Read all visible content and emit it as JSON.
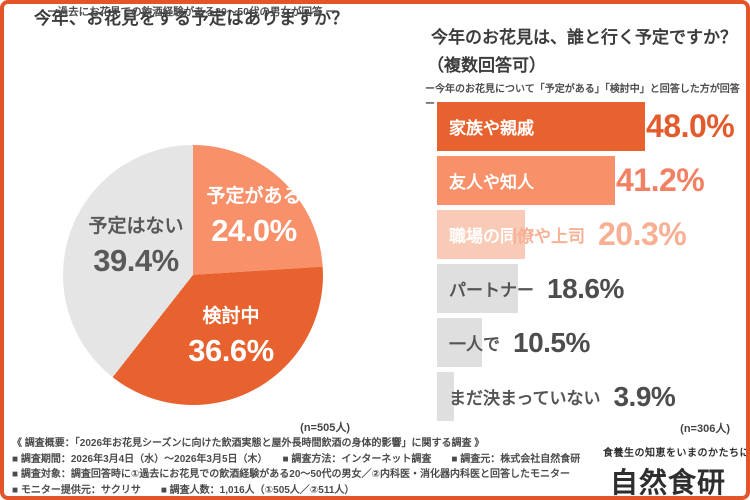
{
  "accent": "#E4542B",
  "left": {
    "title": "今年、お花見をする予定はありますか？",
    "subtitle": "ー過去にお花見での飲酒経験がある20〜50代の男女が回答 ー",
    "n_label": "(n=505人)"
  },
  "right": {
    "title_line1": "今年のお花見は、誰と行く予定ですか？",
    "title_line2": "（複数回答可）",
    "subtitle": "ー今年のお花見について「予定がある」「検討中」と回答した方が回答ー",
    "n_label": "(n=306人)"
  },
  "chart_data": [
    {
      "type": "pie",
      "title": "今年、お花見をする予定はありますか？",
      "labels": [
        "予定がある",
        "検討中",
        "予定はない"
      ],
      "values": [
        24.0,
        36.6,
        39.4
      ],
      "display": [
        "24.0%",
        "36.6%",
        "39.4%"
      ],
      "colors": [
        "#F8906A",
        "#E8622F",
        "#E5E5E5"
      ],
      "label_colors": [
        "#FFFFFF",
        "#FFFFFF",
        "#595959"
      ],
      "start_angle_deg": 0,
      "direction": "clockwise",
      "n": 505
    },
    {
      "type": "bar",
      "orientation": "horizontal",
      "title": "今年のお花見は、誰と行く予定ですか？（複数回答可）",
      "categories": [
        "家族や親戚",
        "友人や知人",
        "職場の同僚や上司",
        "パートナー",
        "一人で",
        "まだ決まっていない"
      ],
      "values": [
        48.0,
        41.2,
        20.3,
        18.6,
        10.5,
        3.9
      ],
      "display": [
        "48.0%",
        "41.2%",
        "20.3%",
        "18.6%",
        "10.5%",
        "3.9%"
      ],
      "bar_colors": [
        "#E8622F",
        "#F8906A",
        "#F9CBB6",
        "#DFDFDF",
        "#DFDFDF",
        "#DFDFDF"
      ],
      "value_colors": [
        "#E35A2C",
        "#F28164",
        "#F8B095",
        "#4D4D4D",
        "#4D4D4D",
        "#4D4D4D"
      ],
      "label_colors": [
        "#FFFFFF",
        "#FFFFFF",
        "mixed",
        "#555555",
        "#555555",
        "#555555"
      ],
      "xlim": [
        0,
        60
      ],
      "n": 306
    }
  ],
  "footer": {
    "lines": [
      "《 調査概要：「2026年お花見シーズンに向けた飲酒実態と屋外長時間飲酒の身体的影響」に関する調査 》",
      "■ 調査期間：2026年3月4日（水）〜2026年3月5日（木）　　■ 調査方法：インターネット調査　　■ 調査元：株式会社自然食研",
      "■ 調査対象：調査回答時に①過去にお花見での飲酒経験がある20〜50代の男女／②内科医・消化器内科医と回答したモニター",
      "■ モニター提供元：サクリサ　　■ 調査人数：1,016人（①505人／②511人）"
    ],
    "logo_tagline": "食養生の知恵をいまのかたちに",
    "logo_name": "自然食研"
  }
}
